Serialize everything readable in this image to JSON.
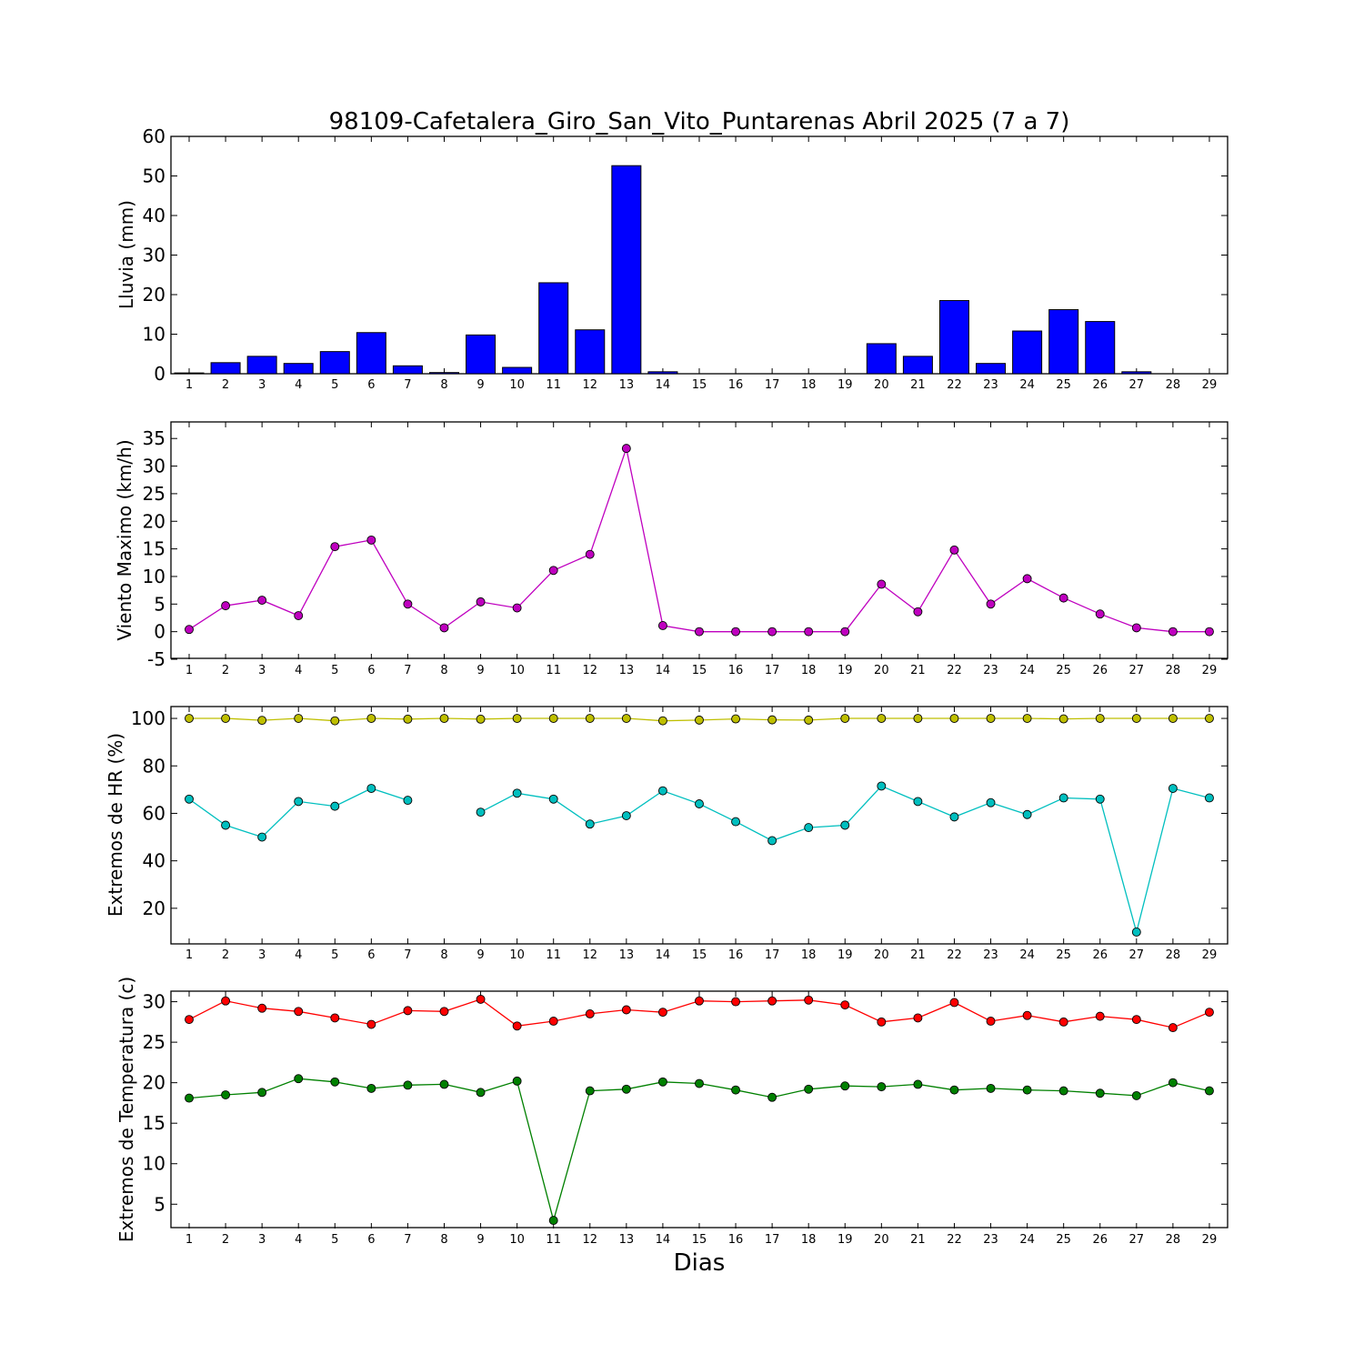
{
  "title": "98109-Cafetalera_Giro_San_Vito_Puntarenas Abril 2025  (7 a 7)",
  "xlabel": "Dias",
  "chart_data": [
    {
      "type": "bar",
      "ylabel": "Lluvia (mm)",
      "ylim": [
        0,
        60
      ],
      "yticks": [
        0,
        10,
        20,
        30,
        40,
        50,
        60
      ],
      "x": [
        1,
        2,
        3,
        4,
        5,
        6,
        7,
        8,
        9,
        10,
        11,
        12,
        13,
        14,
        15,
        16,
        17,
        18,
        19,
        20,
        21,
        22,
        23,
        24,
        25,
        26,
        27,
        28,
        29
      ],
      "series": [
        {
          "color": "#0000ff",
          "values": [
            0.2,
            2.8,
            4.4,
            2.6,
            5.6,
            10.4,
            2.0,
            0.3,
            9.8,
            1.6,
            23.0,
            11.1,
            52.6,
            0.5,
            0,
            0,
            0,
            0,
            0,
            7.6,
            4.4,
            18.5,
            2.6,
            10.8,
            16.2,
            13.2,
            0.5,
            0,
            0
          ]
        }
      ]
    },
    {
      "type": "line",
      "ylabel": "Viento Maximo (km/h)",
      "ylim": [
        -5,
        38
      ],
      "yticks": [
        -5,
        0,
        5,
        10,
        15,
        20,
        25,
        30,
        35
      ],
      "x": [
        1,
        2,
        3,
        4,
        5,
        6,
        7,
        8,
        9,
        10,
        11,
        12,
        13,
        14,
        15,
        16,
        17,
        18,
        19,
        20,
        21,
        22,
        23,
        24,
        25,
        26,
        27,
        28,
        29
      ],
      "series": [
        {
          "color": "#bf00bf",
          "values": [
            0.4,
            4.7,
            5.7,
            2.9,
            15.4,
            16.6,
            5.0,
            0.7,
            5.4,
            4.3,
            11.1,
            14.0,
            33.2,
            1.1,
            0,
            0,
            0,
            0,
            0,
            8.6,
            3.6,
            14.8,
            5.0,
            9.6,
            6.1,
            3.2,
            0.7,
            0,
            0
          ]
        }
      ]
    },
    {
      "type": "line",
      "ylabel": "Extremos de HR (%)",
      "ylim": [
        5,
        105
      ],
      "yticks": [
        20,
        40,
        60,
        80,
        100
      ],
      "x": [
        1,
        2,
        3,
        4,
        5,
        6,
        7,
        8,
        9,
        10,
        11,
        12,
        13,
        14,
        15,
        16,
        17,
        18,
        19,
        20,
        21,
        22,
        23,
        24,
        25,
        26,
        27,
        28,
        29
      ],
      "series": [
        {
          "color": "#bfbf00",
          "values": [
            100,
            100,
            99.2,
            100,
            99,
            100,
            99.7,
            100,
            99.7,
            100,
            100,
            100,
            100,
            99,
            99.3,
            99.8,
            99.4,
            99.3,
            100,
            100,
            100,
            100,
            100,
            100,
            99.8,
            100,
            100,
            100,
            100
          ]
        },
        {
          "color": "#00bfbf",
          "values": [
            66,
            55,
            50,
            65,
            63,
            70.5,
            65.5,
            null,
            60.5,
            68.5,
            66,
            55.5,
            59,
            69.5,
            64,
            56.5,
            48.5,
            54,
            55,
            71.5,
            65,
            58.5,
            64.5,
            59.5,
            66.5,
            66,
            10,
            70.5,
            66.5
          ]
        }
      ]
    },
    {
      "type": "line",
      "ylabel": "Extremos de Temperatura (c)",
      "ylim": [
        2,
        31.3
      ],
      "yticks": [
        5,
        10,
        15,
        20,
        25,
        30
      ],
      "x": [
        1,
        2,
        3,
        4,
        5,
        6,
        7,
        8,
        9,
        10,
        11,
        12,
        13,
        14,
        15,
        16,
        17,
        18,
        19,
        20,
        21,
        22,
        23,
        24,
        25,
        26,
        27,
        28,
        29
      ],
      "series": [
        {
          "color": "#ff0000",
          "values": [
            27.8,
            30.1,
            29.2,
            28.8,
            28.0,
            27.2,
            28.9,
            28.8,
            30.3,
            27.0,
            27.6,
            28.5,
            29.0,
            28.7,
            30.1,
            30.0,
            30.1,
            30.2,
            29.6,
            27.5,
            28.0,
            29.9,
            27.6,
            28.3,
            27.5,
            28.2,
            27.8,
            26.8,
            28.7
          ]
        },
        {
          "color": "#008000",
          "values": [
            18.1,
            18.5,
            18.8,
            20.5,
            20.1,
            19.3,
            19.7,
            19.8,
            18.8,
            20.2,
            3.0,
            19.0,
            19.2,
            20.1,
            19.9,
            19.1,
            18.2,
            19.2,
            19.6,
            19.5,
            19.8,
            19.1,
            19.3,
            19.1,
            19.0,
            18.7,
            18.4,
            20.0,
            19.0
          ]
        }
      ]
    }
  ]
}
